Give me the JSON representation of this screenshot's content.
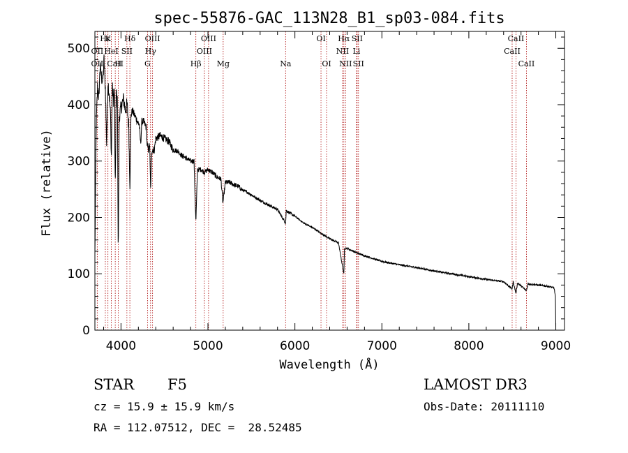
{
  "chart_data": {
    "type": "line",
    "title": "spec-55876-GAC_113N28_B1_sp03-084.fits",
    "xlabel": "Wavelength (Å)",
    "ylabel": "Flux (relative)",
    "xlim": [
      3700,
      9100
    ],
    "ylim": [
      0,
      530
    ],
    "x_ticks": [
      4000,
      5000,
      6000,
      7000,
      8000,
      9000
    ],
    "y_ticks": [
      0,
      100,
      200,
      300,
      400,
      500
    ],
    "line_color": "#000000",
    "marker_color": "#aa0000",
    "spectrum_anchors": [
      [
        3700,
        130
      ],
      [
        3715,
        360
      ],
      [
        3730,
        430
      ],
      [
        3745,
        410
      ],
      [
        3760,
        470
      ],
      [
        3775,
        450
      ],
      [
        3790,
        440
      ],
      [
        3805,
        480
      ],
      [
        3820,
        430
      ],
      [
        3835,
        330
      ],
      [
        3850,
        440
      ],
      [
        3865,
        420
      ],
      [
        3880,
        380
      ],
      [
        3889,
        300
      ],
      [
        3900,
        430
      ],
      [
        3915,
        410
      ],
      [
        3925,
        420
      ],
      [
        3934,
        240
      ],
      [
        3945,
        420
      ],
      [
        3960,
        400
      ],
      [
        3968,
        130
      ],
      [
        3980,
        380
      ],
      [
        3995,
        390
      ],
      [
        4010,
        400
      ],
      [
        4030,
        410
      ],
      [
        4050,
        390
      ],
      [
        4070,
        400
      ],
      [
        4090,
        360
      ],
      [
        4102,
        250
      ],
      [
        4115,
        380
      ],
      [
        4130,
        390
      ],
      [
        4160,
        380
      ],
      [
        4190,
        370
      ],
      [
        4210,
        365
      ],
      [
        4226,
        330
      ],
      [
        4240,
        370
      ],
      [
        4260,
        370
      ],
      [
        4290,
        360
      ],
      [
        4300,
        330
      ],
      [
        4315,
        320
      ],
      [
        4330,
        330
      ],
      [
        4340,
        250
      ],
      [
        4355,
        320
      ],
      [
        4383,
        320
      ],
      [
        4400,
        340
      ],
      [
        4450,
        345
      ],
      [
        4500,
        340
      ],
      [
        4550,
        335
      ],
      [
        4600,
        320
      ],
      [
        4650,
        318
      ],
      [
        4700,
        310
      ],
      [
        4750,
        305
      ],
      [
        4800,
        300
      ],
      [
        4840,
        300
      ],
      [
        4861,
        190
      ],
      [
        4880,
        285
      ],
      [
        4920,
        285
      ],
      [
        4960,
        280
      ],
      [
        5000,
        285
      ],
      [
        5050,
        280
      ],
      [
        5100,
        272
      ],
      [
        5150,
        268
      ],
      [
        5172,
        225
      ],
      [
        5200,
        262
      ],
      [
        5250,
        262
      ],
      [
        5300,
        258
      ],
      [
        5350,
        255
      ],
      [
        5400,
        248
      ],
      [
        5450,
        245
      ],
      [
        5500,
        240
      ],
      [
        5600,
        230
      ],
      [
        5700,
        222
      ],
      [
        5800,
        214
      ],
      [
        5893,
        190
      ],
      [
        5900,
        212
      ],
      [
        6000,
        202
      ],
      [
        6100,
        190
      ],
      [
        6200,
        182
      ],
      [
        6300,
        172
      ],
      [
        6400,
        162
      ],
      [
        6500,
        155
      ],
      [
        6563,
        100
      ],
      [
        6570,
        145
      ],
      [
        6600,
        145
      ],
      [
        6700,
        138
      ],
      [
        6800,
        132
      ],
      [
        6900,
        127
      ],
      [
        7000,
        122
      ],
      [
        7200,
        116
      ],
      [
        7400,
        111
      ],
      [
        7600,
        105
      ],
      [
        7800,
        100
      ],
      [
        8000,
        95
      ],
      [
        8200,
        90
      ],
      [
        8400,
        86
      ],
      [
        8498,
        73
      ],
      [
        8510,
        86
      ],
      [
        8542,
        65
      ],
      [
        8560,
        84
      ],
      [
        8662,
        70
      ],
      [
        8680,
        82
      ],
      [
        8800,
        80
      ],
      [
        8900,
        78
      ],
      [
        8980,
        75
      ],
      [
        8995,
        60
      ],
      [
        9000,
        5
      ]
    ],
    "lines": [
      {
        "label": "Hε",
        "wl": 3820,
        "row": 0
      },
      {
        "label": "K",
        "wl": 3850,
        "row": 0
      },
      {
        "label": "Hδ",
        "wl": 4102,
        "row": 0
      },
      {
        "label": "OIII",
        "wl": 4363,
        "row": 0
      },
      {
        "label": "OIII",
        "wl": 5007,
        "row": 0
      },
      {
        "label": "OI",
        "wl": 6300,
        "row": 0
      },
      {
        "label": "Hα",
        "wl": 6563,
        "row": 0
      },
      {
        "label": "SII",
        "wl": 6716,
        "row": 0
      },
      {
        "label": "CaII",
        "wl": 8542,
        "row": 0
      },
      {
        "label": "OII",
        "wl": 3727,
        "row": 1
      },
      {
        "label": "HeI",
        "wl": 3889,
        "row": 1
      },
      {
        "label": "SII",
        "wl": 4068,
        "row": 1
      },
      {
        "label": "Hγ",
        "wl": 4340,
        "row": 1
      },
      {
        "label": "OIII",
        "wl": 4959,
        "row": 1
      },
      {
        "label": "NII",
        "wl": 6548,
        "row": 1
      },
      {
        "label": "Li",
        "wl": 6708,
        "row": 1
      },
      {
        "label": "CaII",
        "wl": 8498,
        "row": 1
      },
      {
        "label": "OII",
        "wl": 3727,
        "row": 2
      },
      {
        "label": "CaII",
        "wl": 3934,
        "row": 2
      },
      {
        "label": "H",
        "wl": 3968,
        "row": 2
      },
      {
        "label": "G",
        "wl": 4305,
        "row": 2
      },
      {
        "label": "Hβ",
        "wl": 4861,
        "row": 2
      },
      {
        "label": "Mg",
        "wl": 5175,
        "row": 2
      },
      {
        "label": "Na",
        "wl": 5893,
        "row": 2
      },
      {
        "label": "OI",
        "wl": 6364,
        "row": 2
      },
      {
        "label": "NII",
        "wl": 6583,
        "row": 2
      },
      {
        "label": "SII",
        "wl": 6731,
        "row": 2
      },
      {
        "label": "CaII",
        "wl": 8662,
        "row": 2
      }
    ],
    "marker_lines_wl": [
      3727,
      3820,
      3850,
      3889,
      3934,
      3968,
      4068,
      4102,
      4305,
      4340,
      4363,
      4861,
      4959,
      5007,
      5175,
      5893,
      6300,
      6364,
      6548,
      6563,
      6583,
      6708,
      6716,
      6731,
      8498,
      8542,
      8662
    ]
  },
  "info": {
    "object_class": "STAR",
    "subclass": "F5",
    "survey": "LAMOST DR3",
    "cz": "cz = 15.9 ± 15.9 km/s",
    "obs_date": "Obs-Date: 20111110",
    "coords": "RA = 112.07512, DEC =  28.52485"
  }
}
